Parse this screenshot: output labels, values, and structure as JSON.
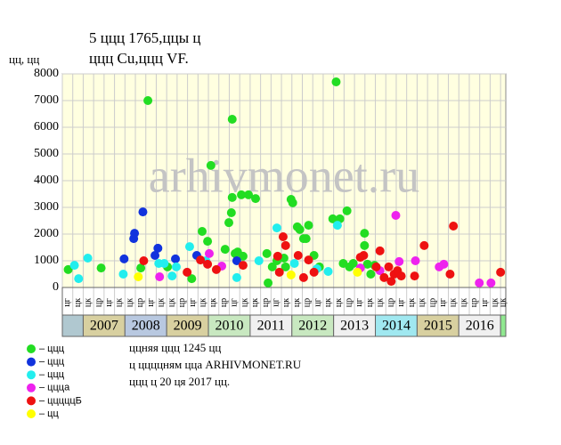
{
  "chart_data": {
    "type": "scatter",
    "title": "5 ццц 1765,ццы ц",
    "subtitle": "ццц Cu,ццц VF.",
    "y_label": "цц, цц",
    "watermark": "arhivmonet.ru",
    "notes": [
      "ццняя ццц 1245 цц",
      "ц ццццням цца ARHIVMONET.RU",
      "ццц ц 20 ця 2017 цц."
    ],
    "background": "#ffffe0",
    "grid": true,
    "xlim": [
      2006.5,
      2017.125
    ],
    "ylim": [
      0,
      8000
    ],
    "yticks": [
      0,
      1000,
      2000,
      3000,
      4000,
      5000,
      6000,
      7000,
      8000
    ],
    "xticks": [
      {
        "value": 2006.5,
        "label": "цг"
      },
      {
        "value": 2006.75,
        "label": "цк"
      },
      {
        "value": 2007,
        "label": "цк"
      },
      {
        "value": 2007.25,
        "label": "цр"
      },
      {
        "value": 2007.5,
        "label": "цг"
      },
      {
        "value": 2007.75,
        "label": "цк"
      },
      {
        "value": 2008,
        "label": "цк"
      },
      {
        "value": 2008.25,
        "label": "цр"
      },
      {
        "value": 2008.5,
        "label": "цг"
      },
      {
        "value": 2008.75,
        "label": "цк"
      },
      {
        "value": 2009,
        "label": "цк"
      },
      {
        "value": 2009.25,
        "label": "цр"
      },
      {
        "value": 2009.5,
        "label": "цг"
      },
      {
        "value": 2009.75,
        "label": "цк"
      },
      {
        "value": 2010,
        "label": "цк"
      },
      {
        "value": 2010.25,
        "label": "цр"
      },
      {
        "value": 2010.5,
        "label": "цг"
      },
      {
        "value": 2010.75,
        "label": "цк"
      },
      {
        "value": 2011,
        "label": "цк"
      },
      {
        "value": 2011.25,
        "label": "цр"
      },
      {
        "value": 2011.5,
        "label": "цг"
      },
      {
        "value": 2011.75,
        "label": "цк"
      },
      {
        "value": 2012,
        "label": "цк"
      },
      {
        "value": 2012.25,
        "label": "цр"
      },
      {
        "value": 2012.5,
        "label": "цг"
      },
      {
        "value": 2012.75,
        "label": "цк"
      },
      {
        "value": 2013,
        "label": "цк"
      },
      {
        "value": 2013.25,
        "label": "цр"
      },
      {
        "value": 2013.5,
        "label": "цг"
      },
      {
        "value": 2013.75,
        "label": "цк"
      },
      {
        "value": 2014,
        "label": "цк"
      },
      {
        "value": 2014.25,
        "label": "цр"
      },
      {
        "value": 2014.5,
        "label": "цг"
      },
      {
        "value": 2014.75,
        "label": "цк"
      },
      {
        "value": 2015,
        "label": "цк"
      },
      {
        "value": 2015.25,
        "label": "цр"
      },
      {
        "value": 2015.5,
        "label": "цг"
      },
      {
        "value": 2015.75,
        "label": "цк"
      },
      {
        "value": 2016,
        "label": "цк"
      },
      {
        "value": 2016.25,
        "label": "цр"
      },
      {
        "value": 2016.5,
        "label": "цг"
      },
      {
        "value": 2016.75,
        "label": "цк"
      },
      {
        "value": 2017,
        "label": "цк"
      }
    ],
    "years": [
      2007,
      2008,
      2009,
      2010,
      2011,
      2012,
      2013,
      2014,
      2015,
      2016
    ],
    "year_colors": [
      "#d8d0a0",
      "#b8c8e0",
      "#d8d0a0",
      "#c8e8c0",
      "#f0f0f0",
      "#c8e8c0",
      "#f0f0f0",
      "#a0e8f0",
      "#d8d0a0",
      "#f0f0f0"
    ],
    "edge_colors": [
      "#b0c8d0",
      "#90e890"
    ],
    "series": [
      {
        "name": "– ццц",
        "color": "#22dd22",
        "x": [
          2006.64,
          2007.43,
          2008.38,
          2008.55,
          2009.02,
          2009.6,
          2009.85,
          2009.98,
          2010.06,
          2010.4,
          2010.49,
          2010.55,
          2010.57,
          2010.57,
          2010.64,
          2010.7,
          2010.79,
          2010.83,
          2010.96,
          2011.13,
          2011.4,
          2011.43,
          2011.53,
          2011.64,
          2011.81,
          2011.85,
          2011.98,
          2012.02,
          2012.13,
          2012.19,
          2012.28,
          2012.34,
          2012.4,
          2012.53,
          2012.66,
          2012.98,
          2013.06,
          2013.15,
          2013.23,
          2013.32,
          2013.38,
          2013.47,
          2013.74,
          2013.74,
          2013.81,
          2013.89,
          2013.98
        ],
        "values": [
          670,
          730,
          730,
          7000,
          770,
          330,
          2100,
          1730,
          4570,
          1430,
          2430,
          2800,
          3370,
          6300,
          1270,
          1330,
          3470,
          1170,
          3470,
          3330,
          1270,
          170,
          770,
          1000,
          1100,
          770,
          3300,
          3170,
          2270,
          2170,
          1830,
          1830,
          2330,
          1200,
          770,
          2570,
          7700,
          2570,
          900,
          2870,
          770,
          900,
          2030,
          1570,
          870,
          500,
          830
        ]
      },
      {
        "name": "– ццц",
        "color": "#1133dd",
        "x": [
          2007.98,
          2008.21,
          2008.23,
          2008.43,
          2008.72,
          2008.79,
          2009.21,
          2009.72,
          2010.68
        ],
        "values": [
          1070,
          1830,
          2030,
          2830,
          1200,
          1470,
          1070,
          1200,
          1000
        ]
      },
      {
        "name": "– ццц",
        "color": "#22eeee",
        "x": [
          2006.79,
          2006.89,
          2007.11,
          2007.96,
          2008.81,
          2008.94,
          2009.13,
          2009.23,
          2009.55,
          2009.94,
          2010.68,
          2011.21,
          2011.64,
          2012.06,
          2012.6,
          2012.87,
          2013.09
        ],
        "values": [
          830,
          330,
          1100,
          500,
          900,
          900,
          430,
          770,
          1530,
          1000,
          370,
          1000,
          2230,
          900,
          700,
          600,
          2330
        ]
      },
      {
        "name": "– ццца",
        "color": "#ee22ee",
        "x": [
          2008.83,
          2010.02,
          2010.32,
          2013.64,
          2014.11,
          2014.49,
          2014.57,
          2014.96,
          2015.53,
          2015.64,
          2016.49,
          2016.77
        ],
        "values": [
          400,
          1270,
          800,
          730,
          630,
          2700,
          970,
          1000,
          770,
          870,
          170,
          170
        ]
      },
      {
        "name": "– цццццБ",
        "color": "#ee1111",
        "x": [
          2008.45,
          2009.49,
          2009.81,
          2009.98,
          2010.19,
          2010.83,
          2011.66,
          2011.7,
          2011.79,
          2011.85,
          2012.15,
          2012.28,
          2012.4,
          2012.53,
          2013.64,
          2013.72,
          2014.02,
          2014.11,
          2014.21,
          2014.32,
          2014.38,
          2014.45,
          2014.53,
          2014.62,
          2014.94,
          2015.17,
          2015.79,
          2015.87,
          2017.0
        ],
        "values": [
          1000,
          570,
          1030,
          870,
          670,
          830,
          1170,
          570,
          1900,
          1570,
          1200,
          370,
          1030,
          570,
          1130,
          1200,
          770,
          1370,
          370,
          770,
          230,
          500,
          630,
          430,
          430,
          1570,
          500,
          2300,
          570
        ]
      },
      {
        "name": "– цц",
        "color": "#ffff00",
        "x": [
          2008.32,
          2011.98,
          2013.57
        ],
        "values": [
          400,
          470,
          570
        ]
      }
    ]
  }
}
